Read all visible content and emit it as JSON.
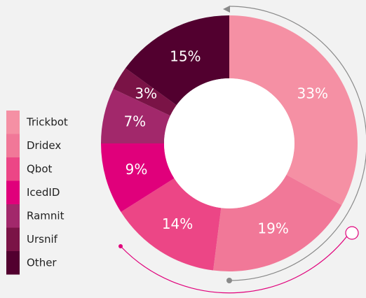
{
  "chart_data": {
    "type": "pie",
    "donut": true,
    "categories": [
      "Trickbot",
      "Dridex",
      "Qbot",
      "IcedID",
      "Ramnit",
      "Ursnif",
      "Other"
    ],
    "values": [
      33,
      19,
      14,
      9,
      7,
      3,
      15
    ],
    "value_labels": [
      "33%",
      "19%",
      "14%",
      "9%",
      "7%",
      "3%",
      "15%"
    ],
    "colors": [
      "#f590a4",
      "#f17898",
      "#ec4686",
      "#e0007b",
      "#a2286b",
      "#7a1346",
      "#52002f"
    ]
  }
}
